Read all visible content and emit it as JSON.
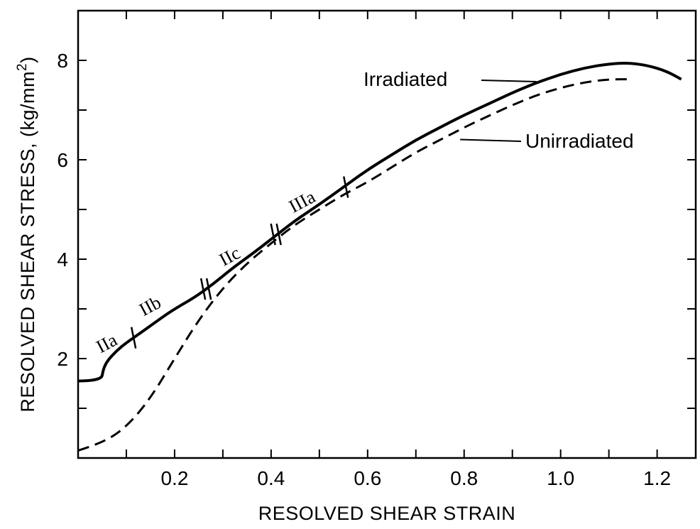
{
  "chart_data": {
    "type": "line",
    "xlabel": "RESOLVED SHEAR STRAIN",
    "ylabel": "RESOLVED SHEAR STRESS, (kg/mm",
    "ylabel_sup": "2",
    "ylabel_close": ")",
    "xlim": [
      0,
      1.28
    ],
    "ylim": [
      0,
      9
    ],
    "x_ticks": [
      "0.2",
      "0.4",
      "0.6",
      "0.8",
      "1.0",
      "1.2"
    ],
    "x_tick_values": [
      0.2,
      0.4,
      0.6,
      0.8,
      1.0,
      1.2
    ],
    "x_minor_ticks": [
      0.1,
      0.3,
      0.5,
      0.7,
      0.9,
      1.1
    ],
    "y_ticks": [
      "2",
      "4",
      "6",
      "8"
    ],
    "y_tick_values": [
      2,
      4,
      6,
      8
    ],
    "y_minor_ticks": [
      1,
      3,
      5,
      7
    ],
    "grid": false,
    "series": [
      {
        "name": "Irradiated",
        "style": "solid",
        "color": "#000000",
        "points": [
          [
            0.0,
            1.55
          ],
          [
            0.048,
            1.55
          ],
          [
            0.052,
            1.78
          ],
          [
            0.06,
            1.95
          ],
          [
            0.08,
            2.16
          ],
          [
            0.1,
            2.32
          ],
          [
            0.13,
            2.52
          ],
          [
            0.17,
            2.8
          ],
          [
            0.2,
            3.0
          ],
          [
            0.24,
            3.22
          ],
          [
            0.28,
            3.5
          ],
          [
            0.32,
            3.82
          ],
          [
            0.36,
            4.1
          ],
          [
            0.4,
            4.4
          ],
          [
            0.45,
            4.78
          ],
          [
            0.5,
            5.1
          ],
          [
            0.55,
            5.45
          ],
          [
            0.6,
            5.8
          ],
          [
            0.65,
            6.1
          ],
          [
            0.7,
            6.4
          ],
          [
            0.75,
            6.65
          ],
          [
            0.8,
            6.9
          ],
          [
            0.85,
            7.12
          ],
          [
            0.9,
            7.35
          ],
          [
            0.95,
            7.55
          ],
          [
            1.0,
            7.72
          ],
          [
            1.05,
            7.85
          ],
          [
            1.1,
            7.93
          ],
          [
            1.14,
            7.95
          ],
          [
            1.18,
            7.9
          ],
          [
            1.22,
            7.78
          ],
          [
            1.25,
            7.62
          ]
        ]
      },
      {
        "name": "Unirradiated",
        "style": "dashed",
        "color": "#000000",
        "points": [
          [
            0.0,
            0.15
          ],
          [
            0.05,
            0.3
          ],
          [
            0.1,
            0.62
          ],
          [
            0.15,
            1.2
          ],
          [
            0.2,
            2.0
          ],
          [
            0.25,
            2.78
          ],
          [
            0.3,
            3.42
          ],
          [
            0.35,
            3.92
          ],
          [
            0.4,
            4.32
          ],
          [
            0.45,
            4.7
          ],
          [
            0.5,
            5.0
          ],
          [
            0.55,
            5.3
          ],
          [
            0.6,
            5.55
          ],
          [
            0.65,
            5.85
          ],
          [
            0.7,
            6.15
          ],
          [
            0.75,
            6.4
          ],
          [
            0.8,
            6.65
          ],
          [
            0.85,
            6.88
          ],
          [
            0.9,
            7.1
          ],
          [
            0.95,
            7.3
          ],
          [
            1.0,
            7.45
          ],
          [
            1.05,
            7.56
          ],
          [
            1.1,
            7.62
          ],
          [
            1.15,
            7.62
          ]
        ]
      }
    ],
    "annotations": [
      {
        "text": "Irradiated",
        "x": 0.95,
        "y": 7.6
      },
      {
        "text": "Unirradiated",
        "x": 0.78,
        "y": 6.45
      }
    ],
    "stage_labels": [
      {
        "text": "IIa",
        "x": 0.065,
        "y": 2.2
      },
      {
        "text": "IIb",
        "x": 0.155,
        "y": 2.95
      },
      {
        "text": "IIc",
        "x": 0.32,
        "y": 3.95
      },
      {
        "text": "IIIa",
        "x": 0.47,
        "y": 5.05
      }
    ],
    "stage_boundaries": [
      {
        "x": 0.115,
        "y": 2.42,
        "double": false
      },
      {
        "x": 0.265,
        "y": 3.4,
        "double": true
      },
      {
        "x": 0.41,
        "y": 4.5,
        "double": true
      },
      {
        "x": 0.555,
        "y": 5.45,
        "double": false
      }
    ]
  }
}
